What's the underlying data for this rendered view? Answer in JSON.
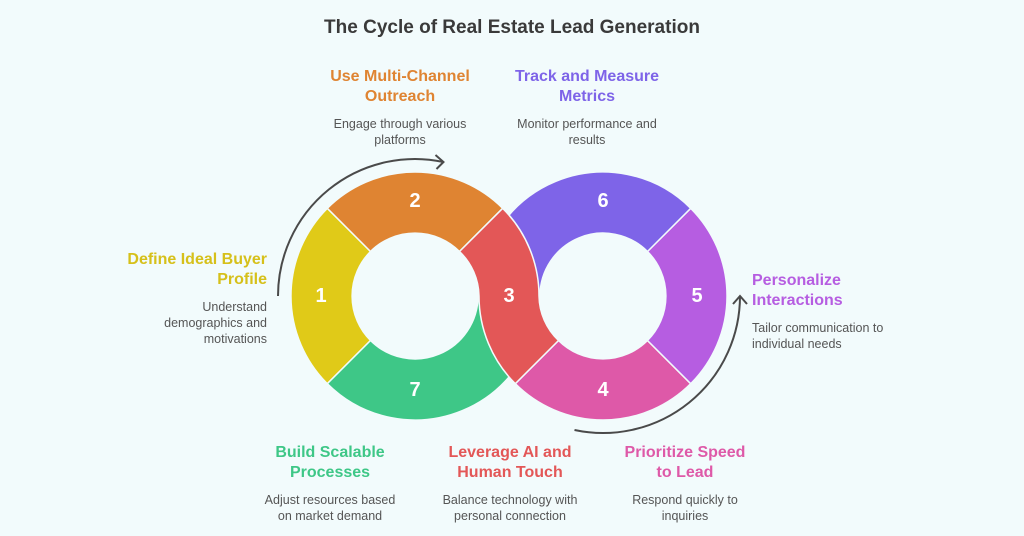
{
  "title": "The Cycle of Real Estate Lead Generation",
  "steps": [
    {
      "number": "1",
      "title_lines": [
        "Define Ideal Buyer",
        "Profile"
      ],
      "desc_lines": [
        "Understand",
        "demographics and",
        "motivations"
      ],
      "color": "#E0CA18"
    },
    {
      "number": "2",
      "title_lines": [
        "Use Multi-Channel",
        "Outreach"
      ],
      "desc_lines": [
        "Engage through various",
        "platforms"
      ],
      "color": "#DF8432"
    },
    {
      "number": "3",
      "title_lines": [
        "Leverage AI and",
        "Human Touch"
      ],
      "desc_lines": [
        "Balance technology with",
        "personal connection"
      ],
      "color": "#E35757"
    },
    {
      "number": "4",
      "title_lines": [
        "Prioritize Speed",
        "to Lead"
      ],
      "desc_lines": [
        "Respond quickly to",
        "inquiries"
      ],
      "color": "#DE59A8"
    },
    {
      "number": "5",
      "title_lines": [
        "Personalize",
        "Interactions"
      ],
      "desc_lines": [
        "Tailor communication to",
        "individual needs"
      ],
      "color": "#B65DE1"
    },
    {
      "number": "6",
      "title_lines": [
        "Track and Measure",
        "Metrics"
      ],
      "desc_lines": [
        "Monitor performance and",
        "results"
      ],
      "color": "#7E64E8"
    },
    {
      "number": "7",
      "title_lines": [
        "Build Scalable",
        "Processes"
      ],
      "desc_lines": [
        "Adjust resources based",
        "on market demand"
      ],
      "color": "#3EC787"
    }
  ],
  "arrow_color": "#4a4a4a"
}
